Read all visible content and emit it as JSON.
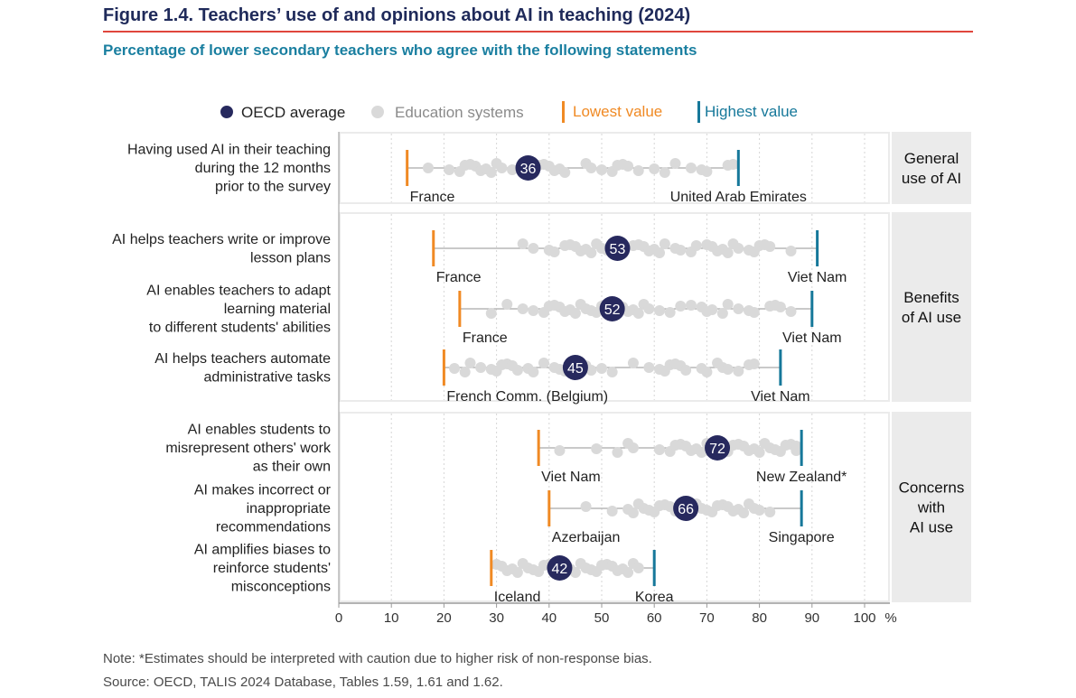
{
  "title": "Figure 1.4. Teachers’ use of and opinions about AI in teaching (2024)",
  "subtitle": "Percentage of lower secondary teachers who agree with the following statements",
  "note": "Note: *Estimates should be interpreted with caution due to higher risk of non-response bias.",
  "source": "Source: OECD, TALIS 2024 Database, Tables 1.59, 1.61 and 1.62.",
  "colors": {
    "oecd": "#27295e",
    "systems": "#d9d9d9",
    "lowest": "#f08a24",
    "highest": "#16789a",
    "panel": "#ebebeb",
    "axis": "#9a9a9a"
  },
  "chart_data": {
    "type": "scatter",
    "xlim": [
      0,
      100
    ],
    "x_unit": "%",
    "x_ticks": [
      "0",
      "10",
      "20",
      "30",
      "40",
      "50",
      "60",
      "70",
      "80",
      "90",
      "100"
    ],
    "legend": {
      "placement": "top",
      "oecd": "OECD average",
      "systems": "Education systems",
      "lowest": "Lowest value",
      "highest": "Highest value"
    },
    "groups": [
      {
        "label_lines": [
          "General",
          "use of AI"
        ]
      },
      {
        "label_lines": [
          "Benefits",
          "of AI use"
        ]
      },
      {
        "label_lines": [
          "Concerns",
          "with",
          "AI use"
        ]
      }
    ],
    "rows": [
      {
        "label_lines": [
          "Having used AI in their teaching",
          "during the 12 months",
          "prior to the survey"
        ],
        "group": 0,
        "oecd": 36,
        "min": 13,
        "min_label": "France",
        "max": 76,
        "max_label": "United  Arab  Emirates",
        "systems": [
          17,
          21,
          23,
          24,
          25,
          26,
          27,
          28,
          29,
          30,
          31,
          33,
          35,
          38,
          39,
          40,
          41,
          42,
          43,
          47,
          48,
          50,
          52,
          53,
          54,
          55,
          57,
          60,
          62,
          64,
          67,
          69,
          70,
          74,
          75
        ]
      },
      {
        "label_lines": [
          "AI helps teachers write or improve",
          "lesson plans"
        ],
        "group": 1,
        "oecd": 53,
        "min": 18,
        "min_label": "France",
        "max": 91,
        "max_label": "Viet  Nam",
        "systems": [
          35,
          37,
          40,
          41,
          43,
          44,
          45,
          46,
          47,
          48,
          49,
          50,
          51,
          54,
          56,
          57,
          58,
          59,
          60,
          61,
          62,
          64,
          65,
          67,
          68,
          70,
          71,
          72,
          73,
          74,
          75,
          76,
          78,
          79,
          80,
          81,
          82,
          86
        ]
      },
      {
        "label_lines": [
          "AI enables teachers to adapt",
          "learning material",
          "to different students' abilities"
        ],
        "group": 1,
        "oecd": 52,
        "min": 23,
        "min_label": "France",
        "max": 90,
        "max_label": "Viet  Nam",
        "systems": [
          29,
          32,
          35,
          37,
          39,
          40,
          41,
          42,
          43,
          44,
          45,
          46,
          47,
          48,
          49,
          50,
          51,
          54,
          55,
          56,
          57,
          58,
          59,
          61,
          63,
          65,
          67,
          69,
          70,
          71,
          73,
          74,
          76,
          78,
          79,
          82,
          83,
          84,
          86
        ]
      },
      {
        "label_lines": [
          "AI helps teachers automate",
          "administrative tasks"
        ],
        "group": 1,
        "oecd": 45,
        "min": 20,
        "min_label": "French  Comm.  (Belgium)",
        "max": 84,
        "max_label": "Viet  Nam",
        "systems": [
          22,
          24,
          25,
          27,
          29,
          30,
          31,
          32,
          33,
          34,
          36,
          37,
          39,
          41,
          42,
          43,
          44,
          46,
          47,
          48,
          50,
          52,
          56,
          59,
          61,
          62,
          63,
          64,
          65,
          66,
          69,
          70,
          72,
          73,
          74,
          76,
          78,
          79
        ]
      },
      {
        "label_lines": [
          "AI enables students to",
          "misrepresent others' work",
          "as their own"
        ],
        "group": 2,
        "oecd": 72,
        "min": 38,
        "min_label": "Viet  Nam",
        "max": 88,
        "max_label": "New  Zealand*",
        "systems": [
          42,
          49,
          53,
          55,
          56,
          61,
          63,
          64,
          65,
          66,
          67,
          68,
          69,
          70,
          71,
          73,
          74,
          75,
          76,
          77,
          78,
          79,
          80,
          81,
          82,
          83,
          84,
          85,
          86,
          87,
          87
        ]
      },
      {
        "label_lines": [
          "AI makes incorrect or",
          "inappropriate",
          "recommendations"
        ],
        "group": 2,
        "oecd": 66,
        "min": 40,
        "min_label": "Azerbaijan",
        "max": 88,
        "max_label": "Singapore",
        "systems": [
          47,
          52,
          55,
          56,
          57,
          58,
          59,
          60,
          61,
          62,
          63,
          64,
          65,
          67,
          68,
          69,
          70,
          71,
          72,
          73,
          74,
          75,
          76,
          77,
          78,
          79,
          80,
          82
        ]
      },
      {
        "label_lines": [
          "AI amplifies biases to",
          "reinforce students'",
          "misconceptions"
        ],
        "group": 2,
        "oecd": 42,
        "min": 29,
        "min_label": "Iceland",
        "max": 60,
        "max_label": "Korea",
        "systems": [
          30,
          31,
          32,
          33,
          34,
          35,
          36,
          37,
          38,
          39,
          40,
          41,
          43,
          44,
          45,
          46,
          47,
          48,
          49,
          50,
          51,
          52,
          53,
          54,
          55,
          56,
          57
        ]
      }
    ]
  }
}
